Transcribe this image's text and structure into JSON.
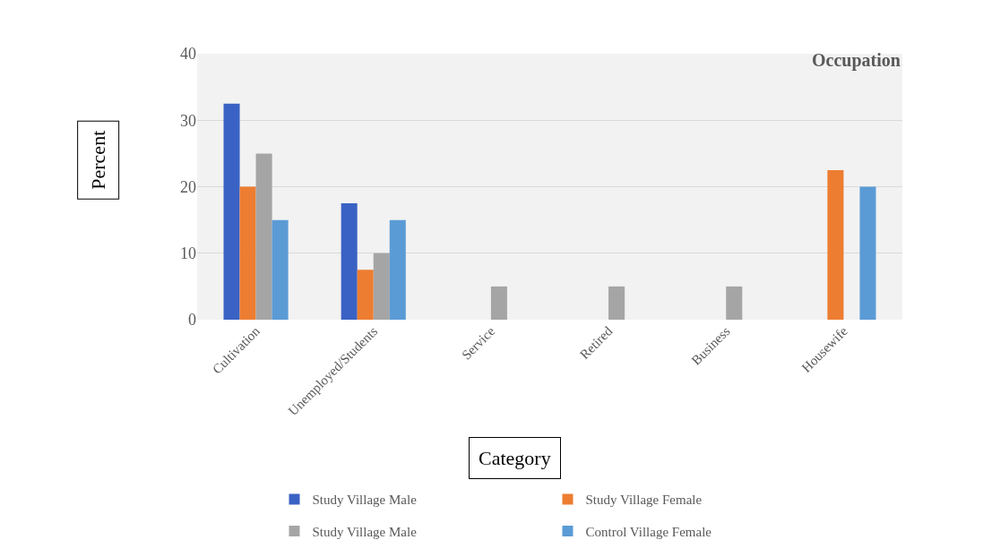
{
  "chart_data": {
    "type": "bar",
    "title": "Occupation",
    "xlabel": "Category",
    "ylabel": "Percent",
    "categories": [
      "Cultivation",
      "Unemployed/Students",
      "Service",
      "Retired",
      "Business",
      "Housewife"
    ],
    "series": [
      {
        "name": "Study Village Male",
        "color": "#3a62c4",
        "values": [
          32.5,
          17.5,
          0,
          0,
          0,
          0
        ]
      },
      {
        "name": "Study Village Female",
        "color": "#ed7d31",
        "values": [
          20,
          7.5,
          0,
          0,
          0,
          22.5
        ]
      },
      {
        "name": "Study Village Male",
        "color": "#a5a5a5",
        "values": [
          25,
          10,
          5,
          5,
          5,
          0
        ]
      },
      {
        "name": "Control Village Female",
        "color": "#5b9bd5",
        "values": [
          15,
          15,
          0,
          0,
          0,
          20
        ]
      }
    ],
    "ylim": [
      0,
      40
    ],
    "yticks": [
      0,
      10,
      20,
      30,
      40
    ],
    "grid": "y",
    "legend": "bottom"
  }
}
